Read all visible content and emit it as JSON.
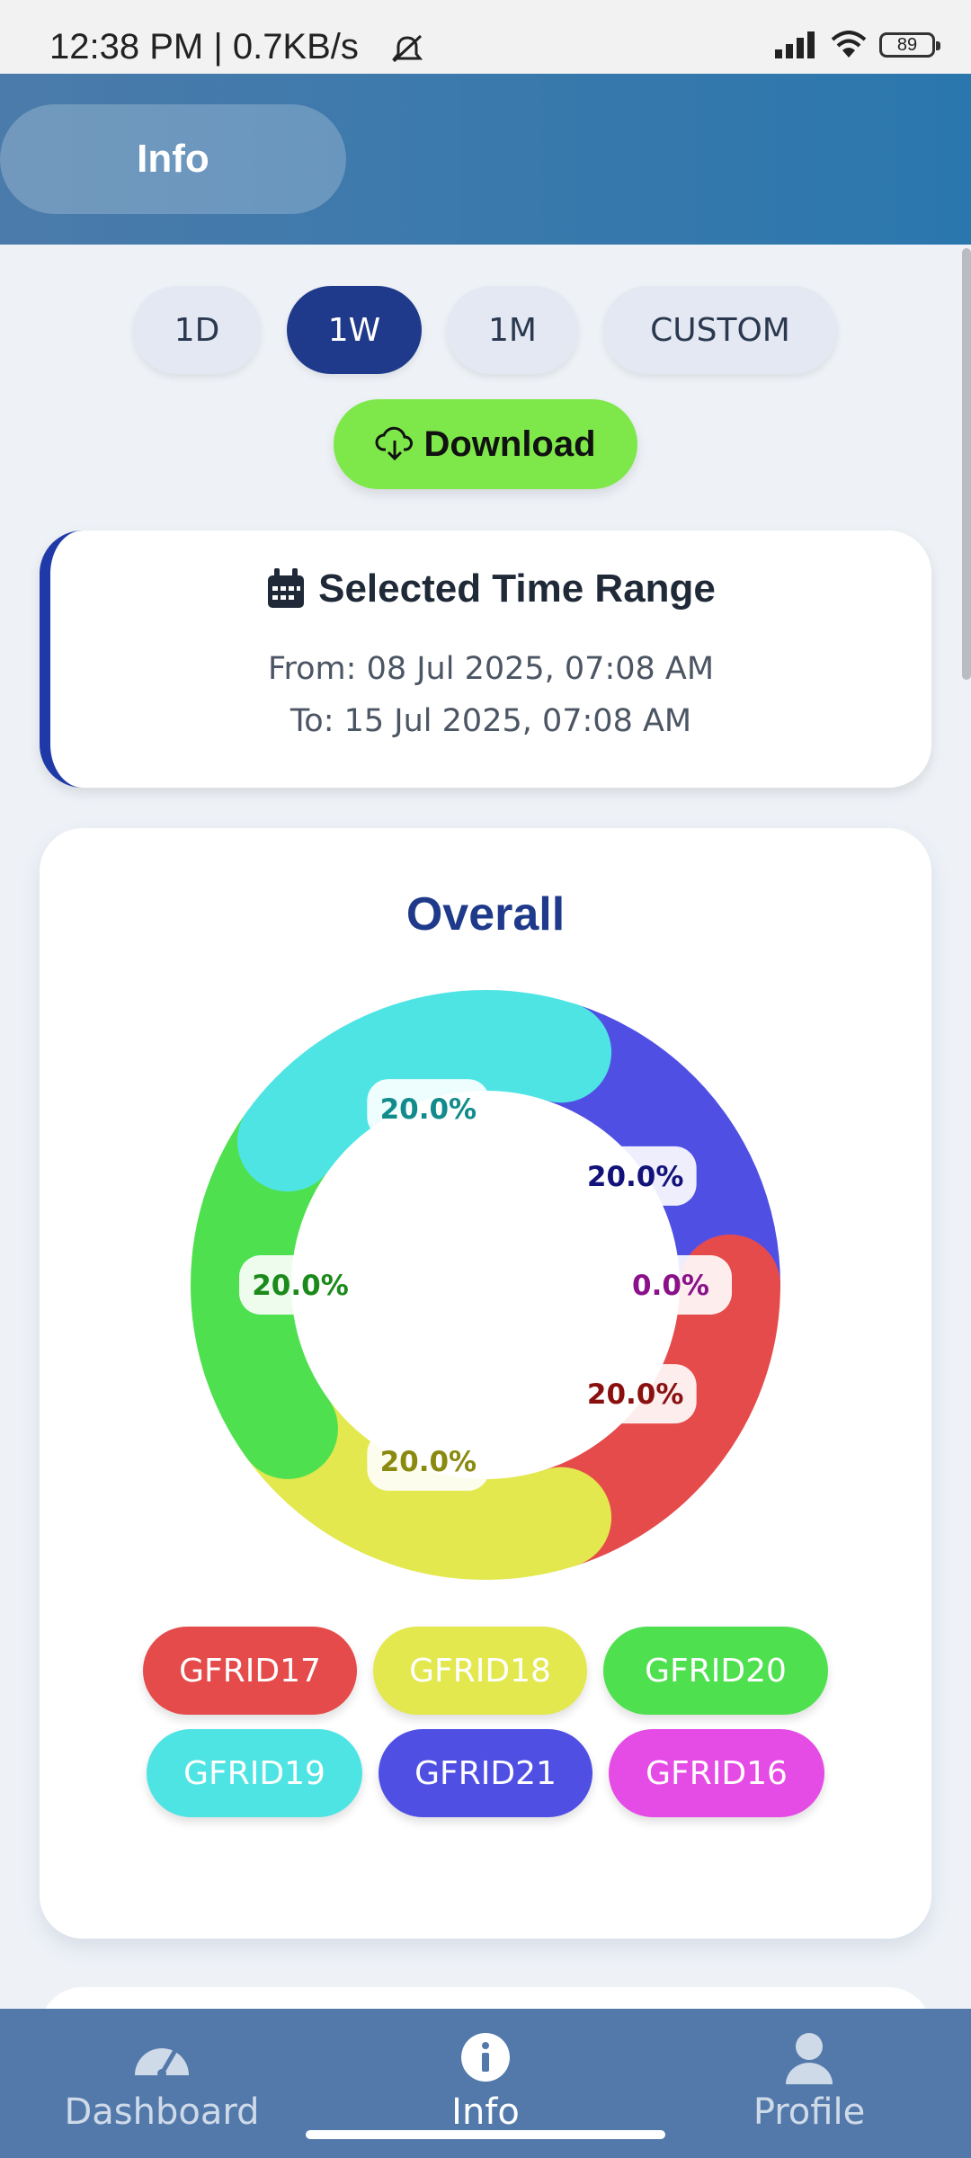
{
  "status_bar": {
    "time": "12:38 PM | 0.7KB/s",
    "battery": "89"
  },
  "header": {
    "title": "Info"
  },
  "range": {
    "buttons": [
      {
        "label": "1D",
        "active": false
      },
      {
        "label": "1W",
        "active": true
      },
      {
        "label": "1M",
        "active": false
      },
      {
        "label": "CUSTOM",
        "active": false
      }
    ]
  },
  "download": {
    "label": "Download",
    "icon": "cloud-download-icon"
  },
  "time_range": {
    "title": "Selected Time Range",
    "icon": "calendar-icon",
    "from": "From: 08 Jul 2025, 07:08 AM",
    "to": "To: 15 Jul 2025, 07:08 AM"
  },
  "overall": {
    "title": "Overall"
  },
  "chart_data": {
    "type": "pie",
    "title": "Overall",
    "categories": [
      "GFRID17",
      "GFRID18",
      "GFRID20",
      "GFRID19",
      "GFRID21",
      "GFRID16"
    ],
    "values": [
      20.0,
      20.0,
      20.0,
      20.0,
      20.0,
      0.0
    ],
    "labels": [
      "20.0%",
      "20.0%",
      "20.0%",
      "20.0%",
      "20.0%",
      "0.0%"
    ],
    "colors": [
      "#e54b4b",
      "#e3e84e",
      "#4fe04f",
      "#4fe4e4",
      "#4f4fe4",
      "#e54be5"
    ],
    "label_colors": [
      "#8a1010",
      "#8a8a10",
      "#1a8a1a",
      "#118b8b",
      "#12127a",
      "#8a118a"
    ],
    "legend_placement": "bottom"
  },
  "nav": {
    "items": [
      {
        "label": "Dashboard",
        "icon": "speedometer-icon",
        "active": false
      },
      {
        "label": "Info",
        "icon": "info-icon",
        "active": true
      },
      {
        "label": "Profile",
        "icon": "person-icon",
        "active": false
      }
    ]
  }
}
